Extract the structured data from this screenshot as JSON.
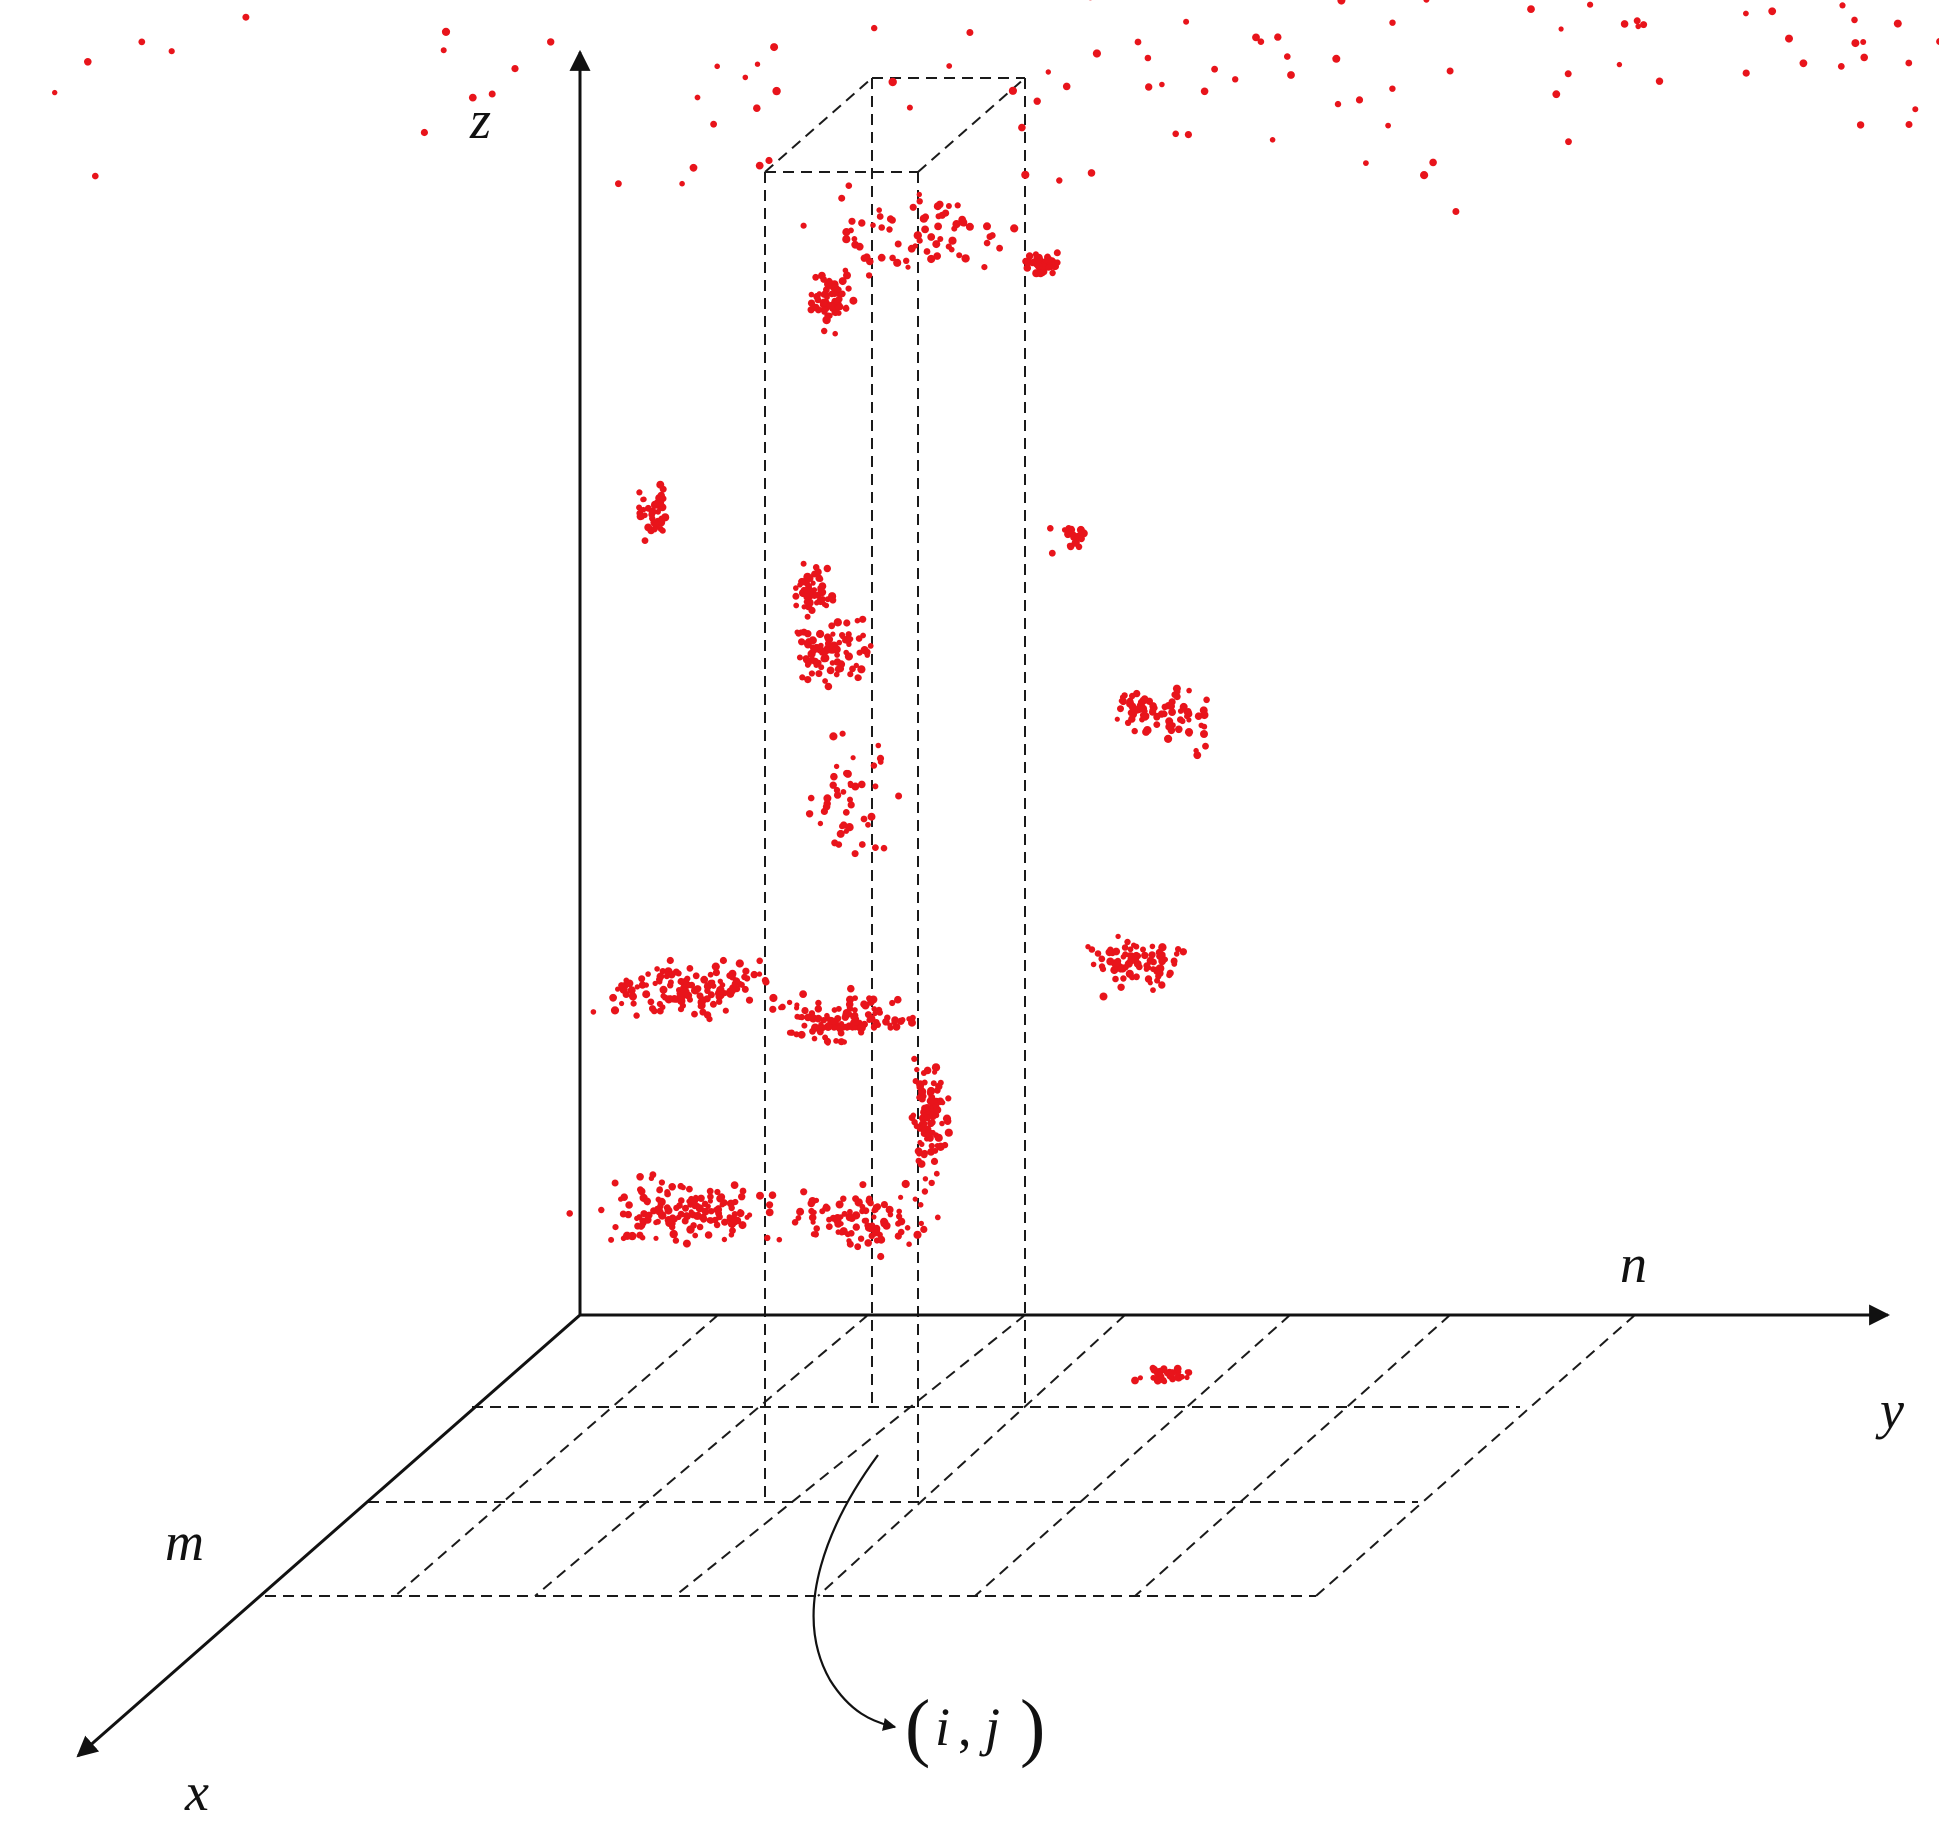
{
  "diagram": {
    "labels": {
      "z_axis": "z",
      "y_axis": "y",
      "x_axis": "x",
      "n_label": "n",
      "m_label": "m",
      "cell_i": "i",
      "cell_sep": ",",
      "cell_j": "j"
    },
    "colors": {
      "points": "#e8141b",
      "axes": "#111111",
      "grid": "#1a1a1a"
    }
  }
}
